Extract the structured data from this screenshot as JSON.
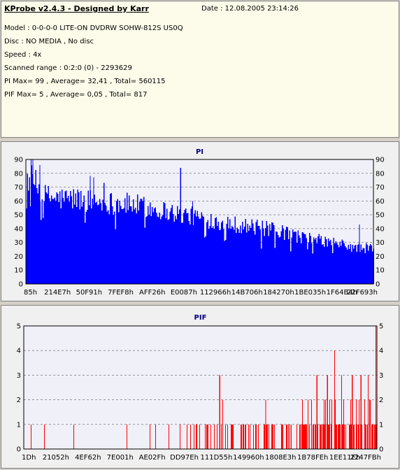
{
  "header": {
    "title": "KProbe v2.4.3 - Designed by Karr",
    "date": "Date : 12.08.2005 23:14:26"
  },
  "info": {
    "lines": [
      "Model : 0-0-0-0 LITE-ON DVDRW SOHW-812S  US0Q",
      "Disc : NO MEDIA , No disc",
      "Speed : 4x",
      "Scanned range : 0:2:0 (0) - 2293629",
      "PI Max= 99 , Average= 32,41 , Total= 560115",
      "PIF Max= 5 , Average= 0,05 , Total= 817"
    ]
  },
  "colors": {
    "pi_bar": "#0000ff",
    "pif_bar": "#ff0000",
    "plot_bg": "#f0f0f8",
    "grid": "#606060"
  },
  "chart_data": [
    {
      "type": "bar",
      "title": "PI",
      "ylim": [
        0,
        90
      ],
      "yticks": [
        0,
        10,
        20,
        30,
        40,
        50,
        60,
        70,
        80,
        90
      ],
      "xlabels": [
        "85h",
        "214E7h",
        "50F91h",
        "7FEF8h",
        "AFF26h",
        "E0087h",
        "112966h",
        "14B706h",
        "184270h",
        "1BE035h",
        "1F64B4h",
        "22F693h"
      ],
      "grid": true,
      "envelope": [
        [
          0,
          80
        ],
        [
          0.02,
          78
        ],
        [
          0.05,
          66
        ],
        [
          0.1,
          64
        ],
        [
          0.15,
          64
        ],
        [
          0.2,
          62
        ],
        [
          0.3,
          60
        ],
        [
          0.4,
          55
        ],
        [
          0.5,
          50
        ],
        [
          0.6,
          45
        ],
        [
          0.7,
          41
        ],
        [
          0.8,
          35
        ],
        [
          0.9,
          30
        ],
        [
          0.95,
          27
        ],
        [
          1,
          27
        ]
      ],
      "peaks": [
        {
          "x": 0.015,
          "value": 95
        },
        {
          "x": 0.02,
          "value": 92
        },
        {
          "x": 0.04,
          "value": 86
        },
        {
          "x": 0.185,
          "value": 78
        },
        {
          "x": 0.195,
          "value": 77
        },
        {
          "x": 0.225,
          "value": 73
        },
        {
          "x": 0.445,
          "value": 84
        },
        {
          "x": 0.48,
          "value": 60
        },
        {
          "x": 0.96,
          "value": 43
        }
      ]
    },
    {
      "type": "bar",
      "title": "PIF",
      "ylim": [
        0,
        5
      ],
      "yticks": [
        0,
        1,
        2,
        3,
        4,
        5
      ],
      "xlabels": [
        "1Dh",
        "21052h",
        "4EF62h",
        "7E001h",
        "AE02Fh",
        "DD97Eh",
        "111D55h",
        "149960h",
        "1808E3h",
        "1B78FEh",
        "1EE11Eh",
        "2247FBh"
      ],
      "grid": true,
      "peaks": [
        {
          "x": 0.555,
          "value": 3
        },
        {
          "x": 0.685,
          "value": 2
        },
        {
          "x": 0.83,
          "value": 3
        },
        {
          "x": 0.86,
          "value": 3
        },
        {
          "x": 0.88,
          "value": 4
        },
        {
          "x": 0.9,
          "value": 3
        },
        {
          "x": 0.93,
          "value": 3
        },
        {
          "x": 0.955,
          "value": 3
        },
        {
          "x": 0.975,
          "value": 3
        },
        {
          "x": 0.997,
          "value": 5
        }
      ]
    }
  ]
}
